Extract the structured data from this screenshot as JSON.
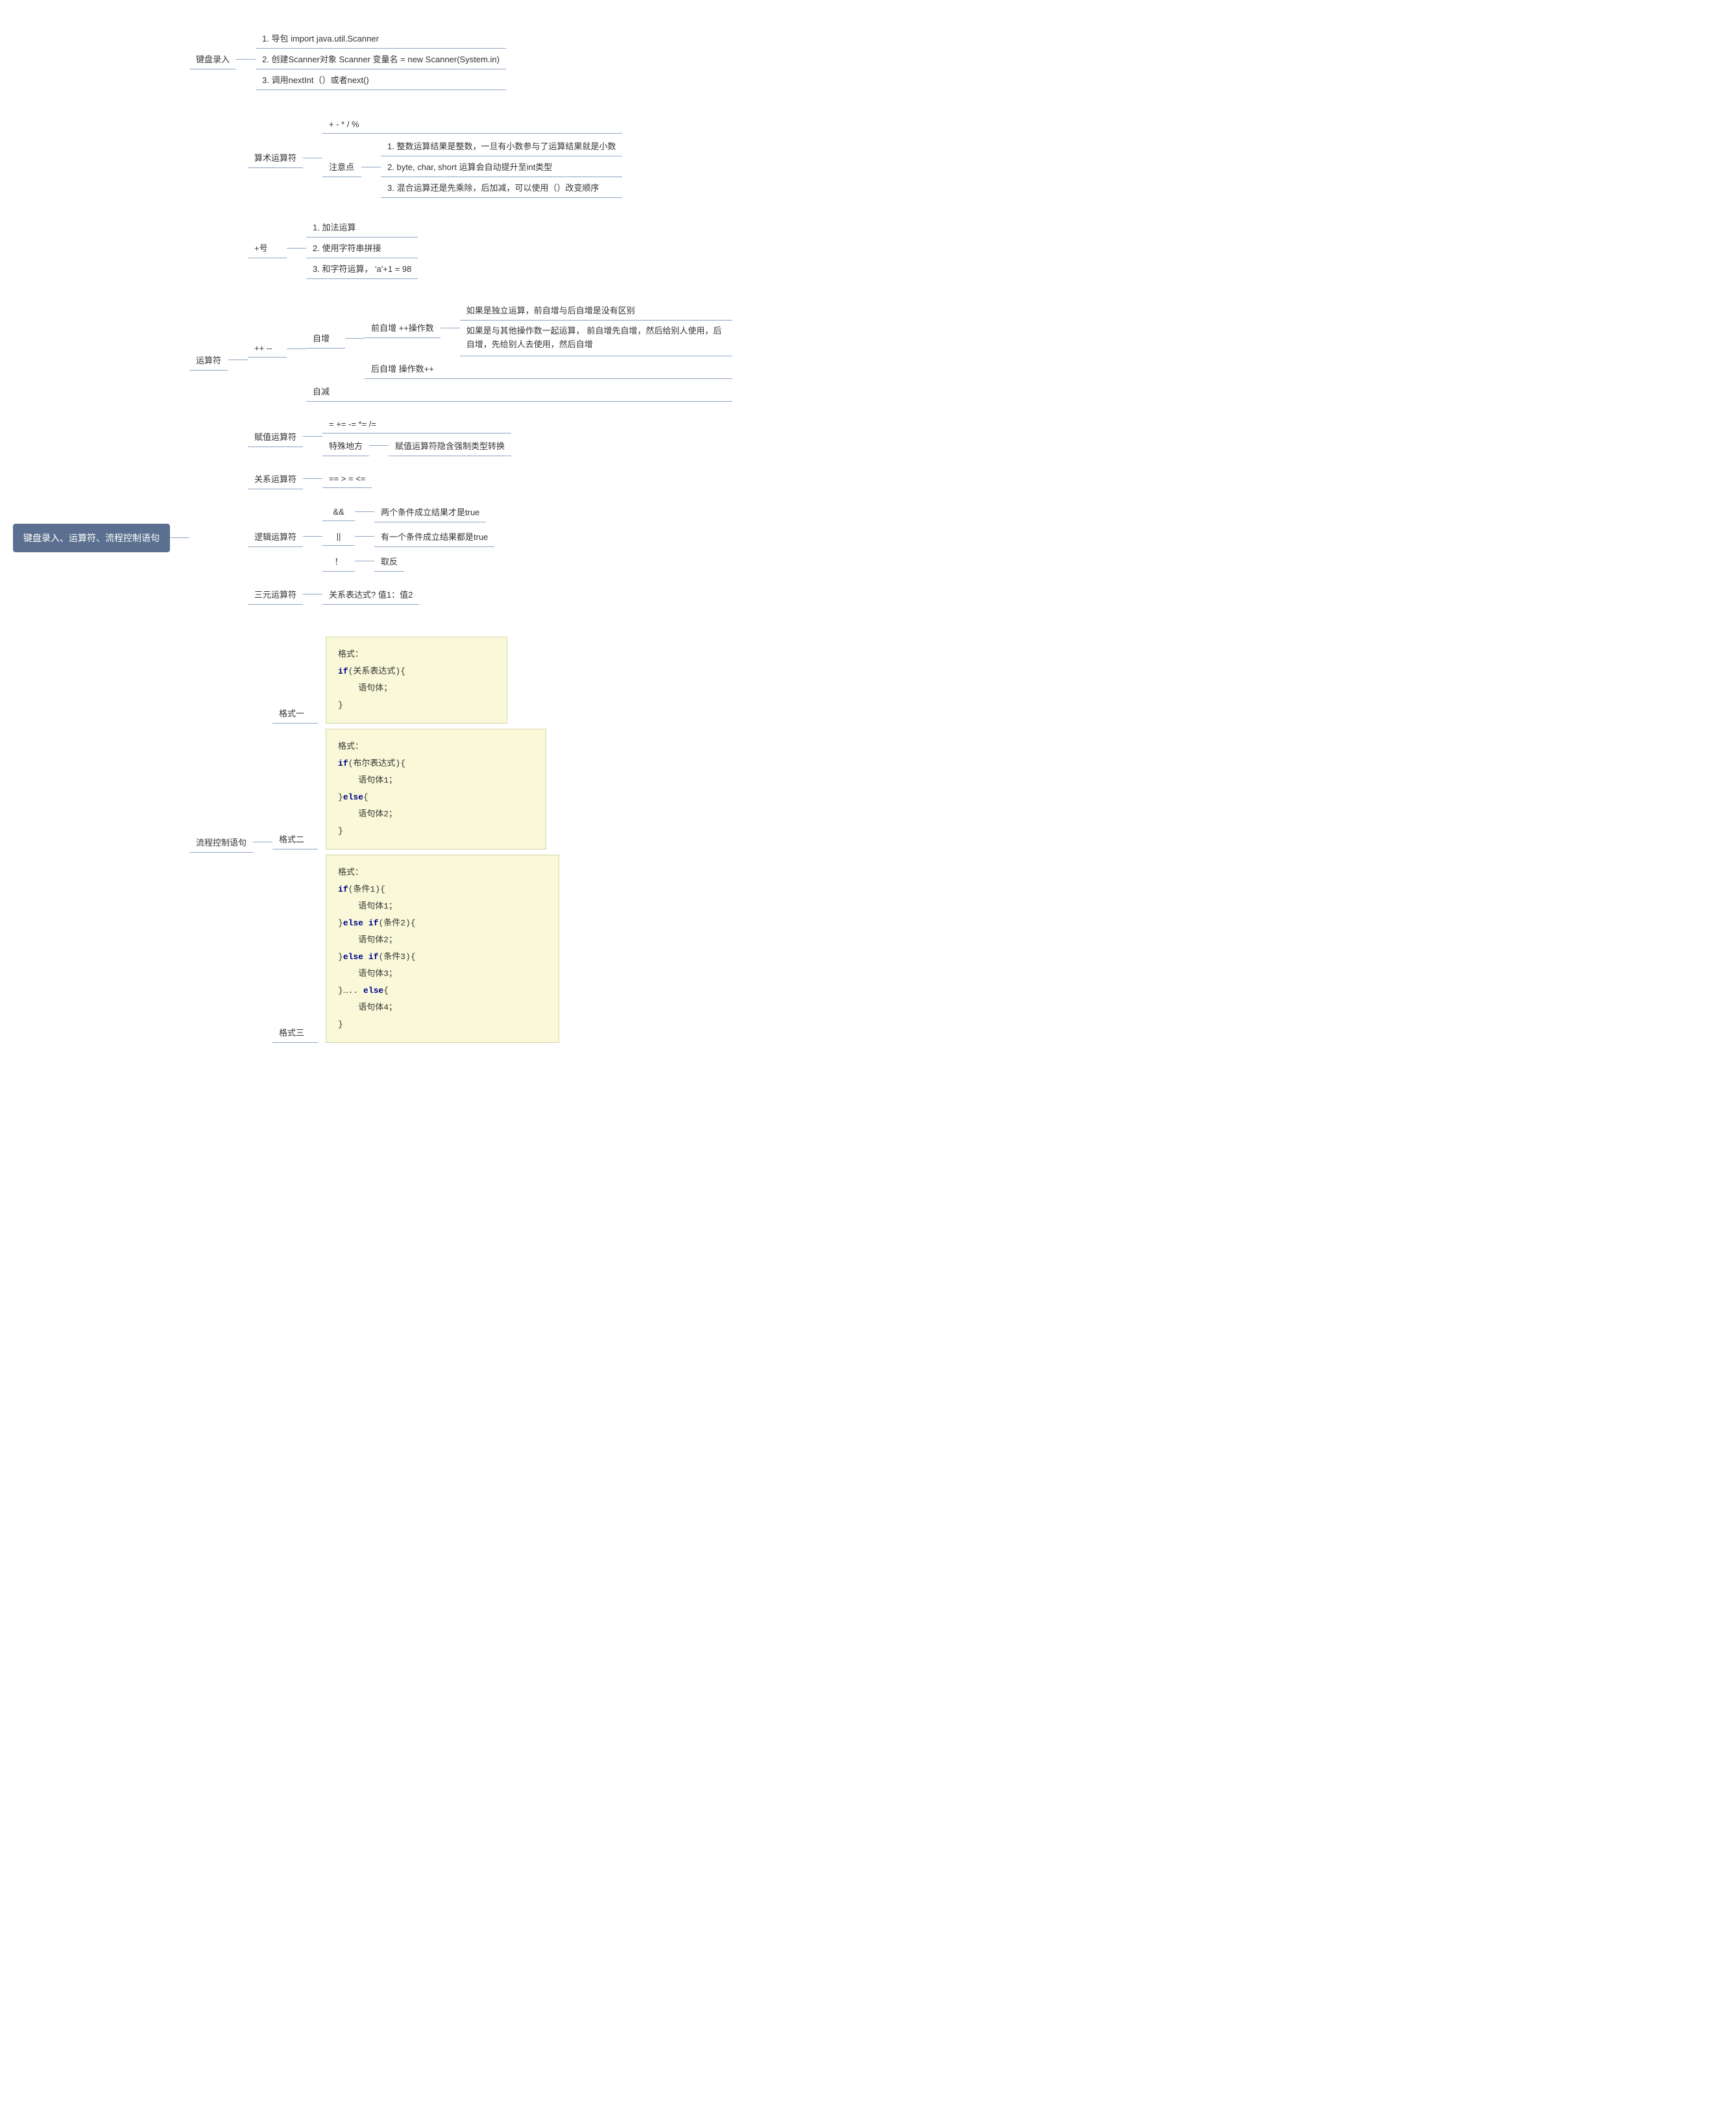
{
  "colors": {
    "root_bg": "#5b7090",
    "root_text": "#ffffff",
    "line": "#8fa5c5",
    "text": "#333333",
    "code_bg": "#f9f9d9",
    "code_border": "#d4d4a8",
    "keyword": "#000088"
  },
  "typography": {
    "base_fontsize": 13,
    "root_fontsize": 14,
    "code_fontsize": 13,
    "font_family": "Microsoft YaHei",
    "code_font_family": "Consolas"
  },
  "root": "键盘录入、运算符、流程控制语句",
  "keyboard": {
    "label": "键盘录入",
    "items": [
      "1. 导包 import java.util.Scanner",
      "2. 创建Scanner对象 Scanner 变量名 = new Scanner(System.in)",
      "3. 调用nextInt（）或者next()"
    ]
  },
  "operators": {
    "label": "运算符",
    "arithmetic": {
      "label": "算术运算符",
      "ops": "+ - * / %",
      "note_label": "注意点",
      "notes": [
        "1. 整数运算结果是整数，一旦有小数参与了运算结果就是小数",
        "2. byte, char, short 运算会自动提升至int类型",
        "3. 混合运算还是先乘除，后加减，可以使用（）改变顺序"
      ]
    },
    "plus": {
      "label": "+号",
      "items": [
        "1. 加法运算",
        "2. 使用字符串拼接",
        "3. 和字符运算， 'a'+1 = 98"
      ]
    },
    "incdec": {
      "label": "++ --",
      "inc": {
        "label": "自增",
        "pre": {
          "label": "前自增 ++操作数",
          "notes": [
            "如果是独立运算，前自增与后自增是没有区别",
            "如果是与其他操作数一起运算， 前自增先自增，然后给别人使用，后自增，先给别人去使用，然后自增"
          ]
        },
        "post": "后自增 操作数++"
      },
      "dec": "自减"
    },
    "assign": {
      "label": "赋值运算符",
      "ops": "= += -= *= /=",
      "special_label": "特殊地方",
      "special": "赋值运算符隐含强制类型转换"
    },
    "relation": {
      "label": "关系运算符",
      "ops": "== > = <="
    },
    "logic": {
      "label": "逻辑运算符",
      "items": [
        {
          "op": "&&",
          "desc": "两个条件成立结果才是true"
        },
        {
          "op": "||",
          "desc": "有一个条件成立结果都是true"
        },
        {
          "op": "！",
          "desc": "取反"
        }
      ]
    },
    "ternary": {
      "label": "三元运算符",
      "desc": "关系表达式? 值1：值2"
    }
  },
  "flow": {
    "label": "流程控制语句",
    "format1": {
      "label": "格式一",
      "code_header": "格式：",
      "code_lines": [
        {
          "kw": "if",
          "rest": "(关系表达式){"
        },
        {
          "indent": 1,
          "rest": "语句体；"
        },
        {
          "rest": "}"
        }
      ]
    },
    "format2": {
      "label": "格式二",
      "code_header": "格式：",
      "code_lines": [
        {
          "kw": "if",
          "rest": "(布尔表达式){"
        },
        {
          "indent": 1,
          "rest": "语句体1；"
        },
        {
          "rest": "}",
          "kw2": "else",
          "rest2": "{"
        },
        {
          "indent": 1,
          "rest": "语句体2；"
        },
        {
          "rest": "}"
        }
      ]
    },
    "format3": {
      "label": "格式三",
      "code_header": "格式：",
      "code_lines": [
        {
          "kw": "if",
          "rest": "(条件1){"
        },
        {
          "indent": 1,
          "rest": "语句体1；"
        },
        {
          "rest": "}",
          "kw2": "else if",
          "rest2": "(条件2){"
        },
        {
          "indent": 1,
          "rest": "语句体2；"
        },
        {
          "rest": "}",
          "kw2": "else if",
          "rest2": "(条件3){"
        },
        {
          "indent": 1,
          "rest": "语句体3；"
        },
        {
          "rest": "}….. ",
          "kw2": "else",
          "rest2": "{"
        },
        {
          "indent": 1,
          "rest": "语句体4；"
        },
        {
          "rest": "}"
        }
      ]
    }
  }
}
